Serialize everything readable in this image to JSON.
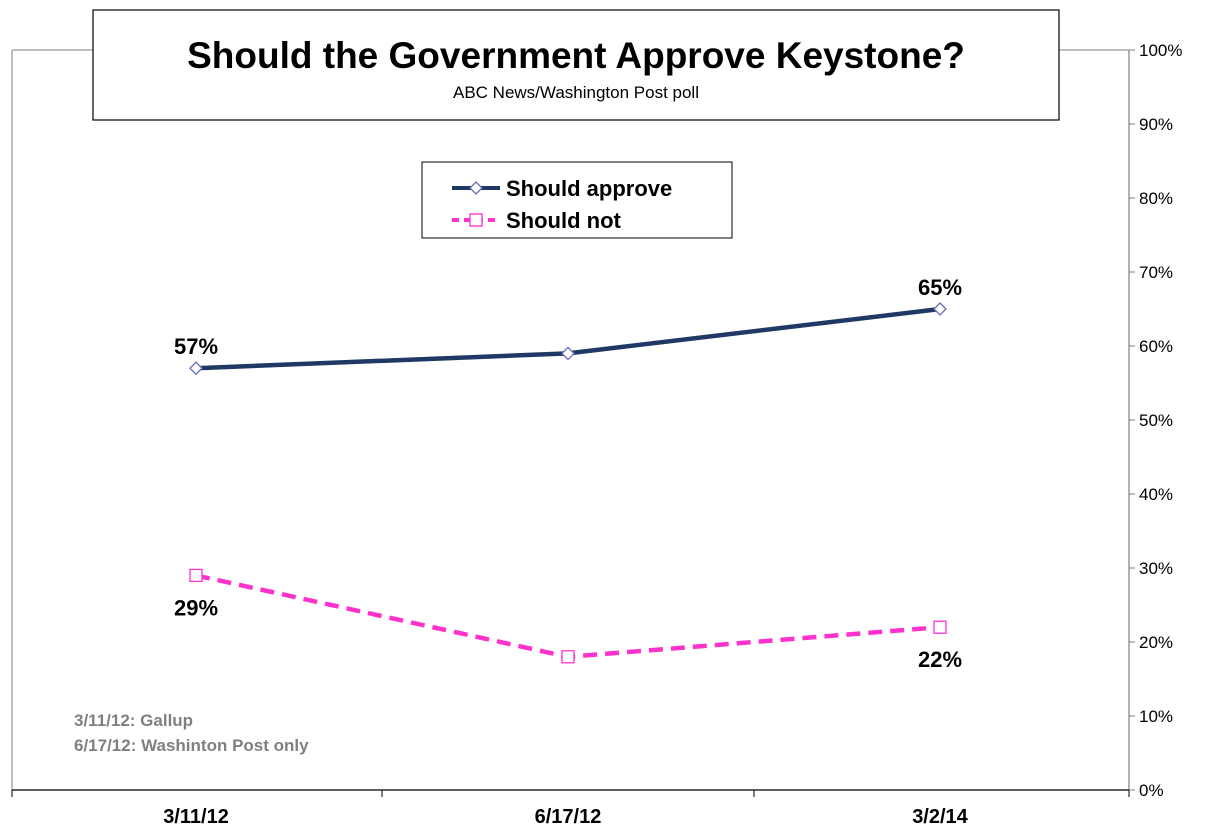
{
  "chart_data": {
    "type": "line",
    "title": "Should the Government  Approve Keystone?",
    "subtitle": "ABC News/Washington  Post poll",
    "categories": [
      "3/11/12",
      "6/17/12",
      "3/2/14"
    ],
    "series": [
      {
        "name": "Should approve",
        "values": [
          57,
          59,
          65
        ],
        "color": "#1f3864",
        "line_style": "solid",
        "marker": "diamond",
        "marker_color": "#6b6bb8"
      },
      {
        "name": "Should not",
        "values": [
          29,
          18,
          22
        ],
        "color": "#ff33cc",
        "line_style": "dashed",
        "marker": "square",
        "marker_color": "#ff33cc"
      }
    ],
    "data_labels": [
      {
        "series": 0,
        "index": 0,
        "text": "57%",
        "placement": "above"
      },
      {
        "series": 0,
        "index": 2,
        "text": "65%",
        "placement": "above"
      },
      {
        "series": 1,
        "index": 0,
        "text": "29%",
        "placement": "below"
      },
      {
        "series": 1,
        "index": 2,
        "text": "22%",
        "placement": "below"
      }
    ],
    "y_axis": {
      "position": "right",
      "ylim": [
        0,
        100
      ],
      "ticks": [
        0,
        10,
        20,
        30,
        40,
        50,
        60,
        70,
        80,
        90,
        100
      ],
      "tick_labels": [
        "0%",
        "10%",
        "20%",
        "30%",
        "40%",
        "50%",
        "60%",
        "70%",
        "80%",
        "90%",
        "100%"
      ]
    },
    "grid": false,
    "legend_position": "top-center",
    "notes": [
      "3/11/12: Gallup",
      "6/17/12: Washinton Post only"
    ],
    "note_color": "#808080"
  }
}
